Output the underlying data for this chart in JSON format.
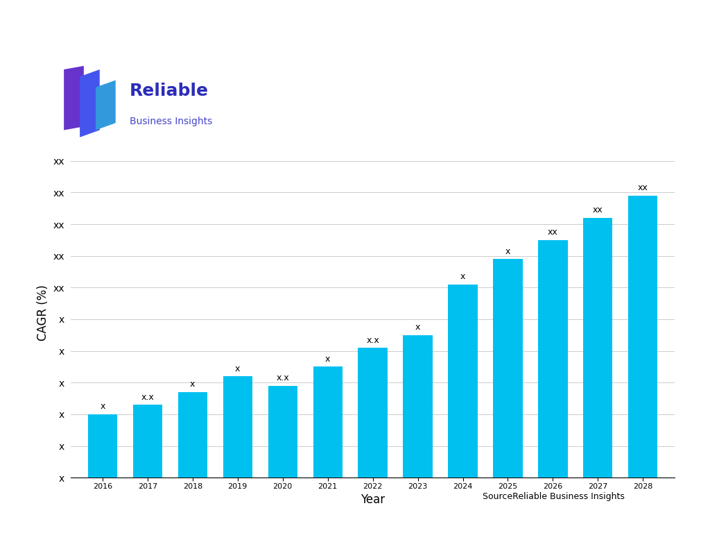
{
  "years": [
    2016,
    2017,
    2018,
    2019,
    2020,
    2021,
    2022,
    2023,
    2024,
    2025,
    2026,
    2027,
    2028
  ],
  "values": [
    1.0,
    1.15,
    1.35,
    1.6,
    1.45,
    1.75,
    2.05,
    2.25,
    3.05,
    3.45,
    3.75,
    4.1,
    4.45
  ],
  "bar_color": "#00C0F0",
  "bar_labels": [
    "x",
    "x.x",
    "x",
    "x",
    "x.x",
    "x",
    "x.x",
    "x",
    "x",
    "x",
    "xx",
    "xx",
    "xx"
  ],
  "ytick_positions": [
    0,
    0.5,
    1.0,
    1.5,
    2.0,
    2.5,
    3.0,
    3.5,
    4.0,
    4.5,
    5.0
  ],
  "ytick_labels": [
    "x",
    "x",
    "x",
    "x",
    "x",
    "x",
    "xx",
    "xx",
    "xx",
    "xx",
    "xx"
  ],
  "ylabel": "CAGR (%)",
  "xlabel": "Year",
  "source_text": "SourceReliable Business Insights",
  "header_bar_color": "#00C0F0",
  "background_color": "#FFFFFF",
  "grid_color": "#CCCCCC",
  "logo_text_reliable": "Reliable",
  "logo_text_bi": "Business Insights",
  "logo_color_reliable": "#2B2DB8",
  "logo_color_bi": "#4545CC",
  "ylabel_fontsize": 12,
  "xlabel_fontsize": 12,
  "bar_label_fontsize": 9,
  "ytick_fontsize": 10,
  "xtick_fontsize": 8,
  "source_fontsize": 9
}
